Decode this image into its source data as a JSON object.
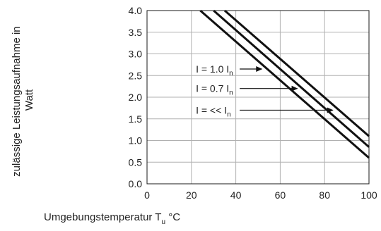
{
  "chart_data": {
    "type": "line",
    "xlabel_main": "Umgebungstemperatur T",
    "xlabel_sub": "u",
    "xlabel_unit": " °C",
    "ylabel_line1": "zulässige Leistungsaufnahme in",
    "ylabel_line2": "Watt",
    "xlim": [
      0,
      100
    ],
    "ylim": [
      0,
      4.0
    ],
    "x_ticks": [
      "0",
      "20",
      "40",
      "60",
      "80",
      "100"
    ],
    "y_ticks": [
      "0.0",
      "0.5",
      "1.0",
      "1.5",
      "2.0",
      "2.5",
      "3.0",
      "3.5",
      "4.0"
    ],
    "grid": true,
    "series": [
      {
        "name": "I = 1.0 In",
        "x": [
          24,
          100
        ],
        "y": [
          4.0,
          0.6
        ]
      },
      {
        "name": "I = 0.7 In",
        "x": [
          30,
          100
        ],
        "y": [
          4.0,
          0.85
        ]
      },
      {
        "name": "I = << In",
        "x": [
          35,
          100
        ],
        "y": [
          4.0,
          1.1
        ]
      }
    ],
    "annotations": [
      {
        "main": "I = 1.0 I",
        "sub": "n",
        "x": 22,
        "y": 2.65,
        "arrow_to": [
          52,
          2.65
        ]
      },
      {
        "main": "I = 0.7 I",
        "sub": "n",
        "x": 22,
        "y": 2.2,
        "arrow_to": [
          68,
          2.2
        ]
      },
      {
        "main": "I = << I",
        "sub": "n",
        "x": 22,
        "y": 1.7,
        "arrow_to": [
          84,
          1.7
        ]
      }
    ]
  }
}
